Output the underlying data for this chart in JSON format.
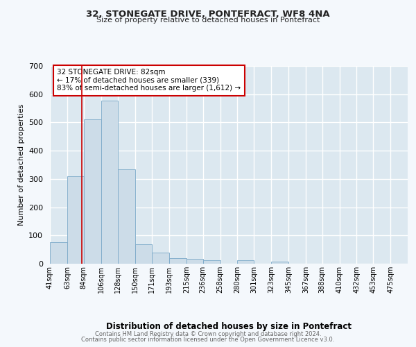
{
  "title": "32, STONEGATE DRIVE, PONTEFRACT, WF8 4NA",
  "subtitle": "Size of property relative to detached houses in Pontefract",
  "xlabel": "Distribution of detached houses by size in Pontefract",
  "ylabel": "Number of detached properties",
  "bar_labels": [
    "41sqm",
    "63sqm",
    "84sqm",
    "106sqm",
    "128sqm",
    "150sqm",
    "171sqm",
    "193sqm",
    "215sqm",
    "236sqm",
    "258sqm",
    "280sqm",
    "301sqm",
    "323sqm",
    "345sqm",
    "367sqm",
    "388sqm",
    "410sqm",
    "432sqm",
    "453sqm",
    "475sqm"
  ],
  "bar_values": [
    75,
    310,
    510,
    578,
    335,
    70,
    40,
    20,
    18,
    13,
    0,
    12,
    0,
    8,
    0,
    0,
    0,
    0,
    0,
    0,
    0
  ],
  "bar_color": "#ccdce8",
  "bar_edge_color": "#7aa8c8",
  "ylim": [
    0,
    700
  ],
  "yticks": [
    0,
    100,
    200,
    300,
    400,
    500,
    600,
    700
  ],
  "vline_x": 82,
  "vline_color": "#cc0000",
  "annotation_title": "32 STONEGATE DRIVE: 82sqm",
  "annotation_line1": "← 17% of detached houses are smaller (339)",
  "annotation_line2": "83% of semi-detached houses are larger (1,612) →",
  "annotation_box_color": "#ffffff",
  "annotation_box_edge": "#cc0000",
  "footer_line1": "Contains HM Land Registry data © Crown copyright and database right 2024.",
  "footer_line2": "Contains public sector information licensed under the Open Government Licence v3.0.",
  "plot_bg_color": "#dce8f0",
  "grid_color": "#ffffff",
  "fig_bg_color": "#f4f8fc",
  "bin_edges_start": [
    41,
    63,
    84,
    106,
    128,
    150,
    171,
    193,
    215,
    236,
    258,
    280,
    301,
    323,
    345,
    367,
    388,
    410,
    432,
    453,
    475
  ],
  "bin_edges_end": [
    63,
    84,
    106,
    128,
    150,
    171,
    193,
    215,
    236,
    258,
    280,
    301,
    323,
    345,
    367,
    388,
    410,
    432,
    453,
    475,
    497
  ]
}
